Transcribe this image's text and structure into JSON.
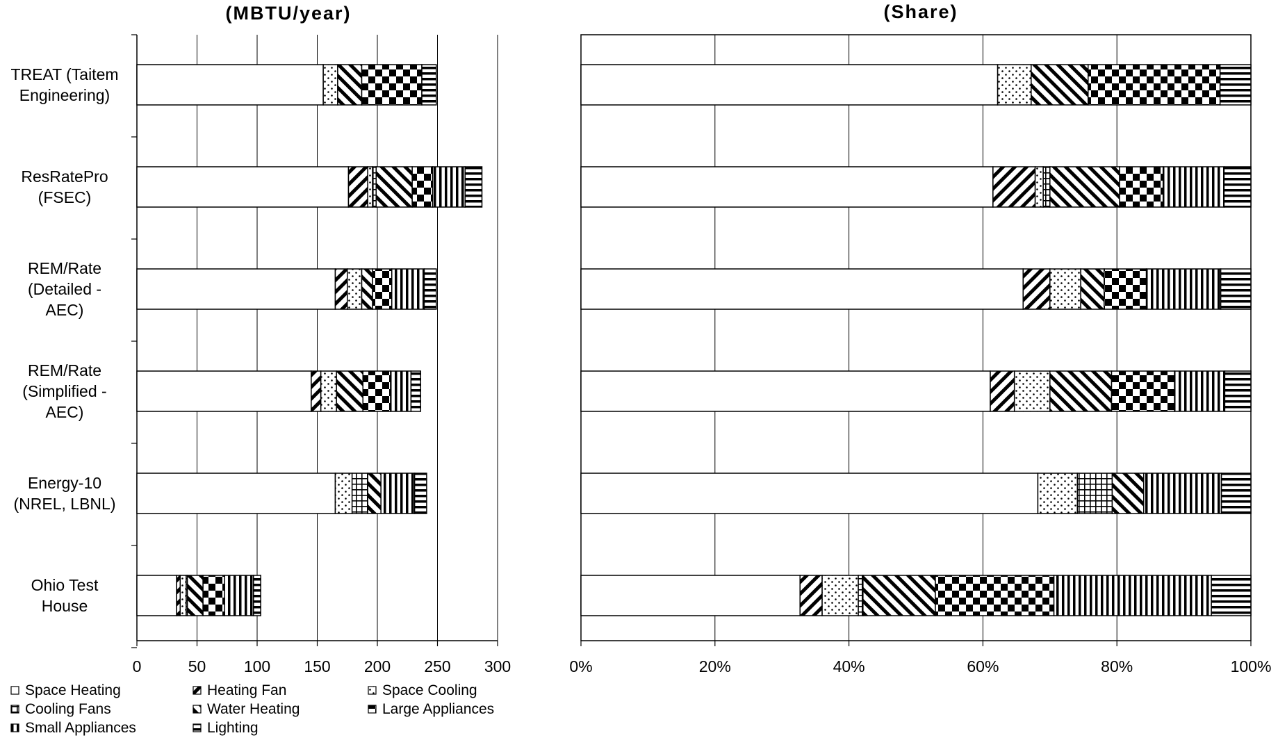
{
  "chart_data": [
    {
      "type": "bar",
      "orientation": "horizontal",
      "stacked": true,
      "title": "(MBTU/year)",
      "categories": [
        "TREAT (Taitem Engineering)",
        "ResRatePro (FSEC)",
        "REM/Rate (Detailed - AEC)",
        "REM/Rate (Simplified - AEC)",
        "Energy-10 (NREL, LBNL)",
        "Ohio Test House"
      ],
      "category_lines": [
        [
          "TREAT (Taitem",
          "Engineering)"
        ],
        [
          "ResRatePro",
          "(FSEC)"
        ],
        [
          "REM/Rate",
          "(Detailed -",
          "AEC)"
        ],
        [
          "REM/Rate",
          "(Simplified -",
          "AEC)"
        ],
        [
          "Energy-10",
          "(NREL, LBNL)"
        ],
        [
          "Ohio Test",
          "House"
        ]
      ],
      "xlim": [
        0,
        300
      ],
      "tick_labels": [
        "0",
        "50",
        "100",
        "150",
        "200",
        "250",
        "300"
      ],
      "grid": true,
      "series": [
        {
          "name": "Space Heating",
          "values": [
            155,
            176,
            165,
            145,
            165,
            33
          ]
        },
        {
          "name": "Heating Fan",
          "values": [
            0,
            16,
            10,
            8,
            0,
            3
          ]
        },
        {
          "name": "Space Cooling",
          "values": [
            12,
            4,
            12,
            13,
            14,
            5
          ]
        },
        {
          "name": "Cooling Fans",
          "values": [
            0,
            3,
            0,
            0,
            13,
            1
          ]
        },
        {
          "name": "Water Heating",
          "values": [
            20,
            30,
            9,
            22,
            11,
            13
          ]
        },
        {
          "name": "Large Appliances",
          "values": [
            50,
            17,
            16,
            23,
            0,
            18
          ]
        },
        {
          "name": "Small Appliances",
          "values": [
            0,
            27,
            27,
            17,
            28,
            24
          ]
        },
        {
          "name": "Lighting",
          "values": [
            12,
            14,
            10,
            8,
            10,
            6
          ]
        }
      ]
    },
    {
      "type": "bar",
      "orientation": "horizontal",
      "stacked": true,
      "normalized": true,
      "title": "(Share)",
      "categories": [
        "TREAT (Taitem Engineering)",
        "ResRatePro (FSEC)",
        "REM/Rate (Detailed - AEC)",
        "REM/Rate (Simplified - AEC)",
        "Energy-10 (NREL, LBNL)",
        "Ohio Test House"
      ],
      "xlim": [
        0,
        100
      ],
      "tick_labels": [
        "0%",
        "20%",
        "40%",
        "60%",
        "80%",
        "100%"
      ],
      "grid": true,
      "series": [
        {
          "name": "Space Heating",
          "values": [
            62.2,
            61.5,
            66.0,
            61.1,
            68.2,
            32.7
          ]
        },
        {
          "name": "Heating Fan",
          "values": [
            0,
            6.3,
            4.0,
            3.6,
            0,
            3.3
          ]
        },
        {
          "name": "Space Cooling",
          "values": [
            5.0,
            1.2,
            4.6,
            5.3,
            5.9,
            5.4
          ]
        },
        {
          "name": "Cooling Fans",
          "values": [
            0,
            1.0,
            0,
            0,
            5.2,
            0.7
          ]
        },
        {
          "name": "Water Heating",
          "values": [
            8.5,
            10.4,
            3.5,
            9.2,
            4.7,
            10.8
          ]
        },
        {
          "name": "Large Appliances",
          "values": [
            19.7,
            6.5,
            6.3,
            9.4,
            0,
            17.7
          ]
        },
        {
          "name": "Small Appliances",
          "values": [
            0,
            9.1,
            11.1,
            7.5,
            11.6,
            23.5
          ]
        },
        {
          "name": "Lighting",
          "values": [
            4.6,
            4.0,
            4.5,
            3.9,
            4.4,
            5.9
          ]
        }
      ]
    }
  ],
  "legend": {
    "placement": "bottom-left",
    "items": [
      {
        "name": "Space Heating",
        "pattern": "blank"
      },
      {
        "name": "Heating Fan",
        "pattern": "diagonal-backslash"
      },
      {
        "name": "Space Cooling",
        "pattern": "dots"
      },
      {
        "name": "Cooling Fans",
        "pattern": "grid"
      },
      {
        "name": "Water Heating",
        "pattern": "diagonal-slash"
      },
      {
        "name": "Large Appliances",
        "pattern": "checker"
      },
      {
        "name": "Small Appliances",
        "pattern": "vertical-lines"
      },
      {
        "name": "Lighting",
        "pattern": "horizontal-lines"
      }
    ]
  },
  "colors": {
    "ink": "#000000",
    "background": "#ffffff"
  }
}
